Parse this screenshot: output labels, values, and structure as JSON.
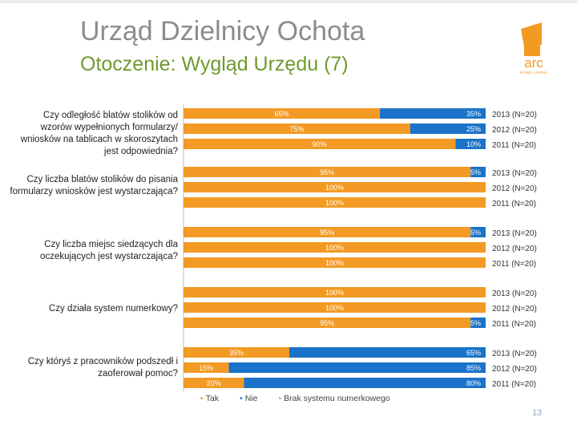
{
  "header": {
    "title": "Urząd Dzielnicy Ochota",
    "subtitle": "Otoczenie: Wygląd Urzędu (7)"
  },
  "logo": {
    "text": "arc",
    "tagline": "RYNEK I OPINIA"
  },
  "colors": {
    "tak": "#f39a25",
    "nie": "#1a73c9",
    "brak": "#c8c8c8"
  },
  "chart_data": {
    "type": "bar",
    "orientation": "horizontal-stacked-100",
    "groups": [
      {
        "question": "Czy odległość blatów stolików od wzorów wypełnionych formularzy/ wniosków na tablicach w skoroszytach jest odpowiednia?",
        "rows": [
          {
            "year": "2013 (N=20)",
            "values": [
              65,
              35,
              0
            ],
            "labels": [
              "65%",
              "35%",
              ""
            ]
          },
          {
            "year": "2012 (N=20)",
            "values": [
              75,
              25,
              0
            ],
            "labels": [
              "75%",
              "25%",
              ""
            ]
          },
          {
            "year": "2011 (N=20)",
            "values": [
              90,
              10,
              0
            ],
            "labels": [
              "90%",
              "10%",
              ""
            ]
          }
        ]
      },
      {
        "question": "Czy liczba blatów stolików do pisania formularzy wniosków jest wystarczająca?",
        "rows": [
          {
            "year": "2013 (N=20)",
            "values": [
              95,
              5,
              0
            ],
            "labels": [
              "95%",
              "5%",
              ""
            ]
          },
          {
            "year": "2012 (N=20)",
            "values": [
              100,
              0,
              0
            ],
            "labels": [
              "100%",
              "",
              ""
            ]
          },
          {
            "year": "2011 (N=20)",
            "values": [
              100,
              0,
              0
            ],
            "labels": [
              "100%",
              "",
              ""
            ]
          }
        ]
      },
      {
        "question": "Czy liczba miejsc siedzących dla oczekujących jest wystarczająca?",
        "rows": [
          {
            "year": "2013 (N=20)",
            "values": [
              95,
              5,
              0
            ],
            "labels": [
              "95%",
              "5%",
              ""
            ]
          },
          {
            "year": "2012 (N=20)",
            "values": [
              100,
              0,
              0
            ],
            "labels": [
              "100%",
              "",
              ""
            ]
          },
          {
            "year": "2011 (N=20)",
            "values": [
              100,
              0,
              0
            ],
            "labels": [
              "100%",
              "",
              ""
            ]
          }
        ]
      },
      {
        "question": "Czy działa system numerkowy?",
        "rows": [
          {
            "year": "2013 (N=20)",
            "values": [
              100,
              0,
              0
            ],
            "labels": [
              "100%",
              "",
              ""
            ]
          },
          {
            "year": "2012 (N=20)",
            "values": [
              100,
              0,
              0
            ],
            "labels": [
              "100%",
              "",
              ""
            ]
          },
          {
            "year": "2011 (N=20)",
            "values": [
              95,
              5,
              0
            ],
            "labels": [
              "95%",
              "5%",
              ""
            ]
          }
        ]
      },
      {
        "question": "Czy któryś z pracowników podszedł i zaoferował pomoc?",
        "rows": [
          {
            "year": "2013 (N=20)",
            "values": [
              35,
              65,
              0
            ],
            "labels": [
              "35%",
              "65%",
              ""
            ]
          },
          {
            "year": "2012 (N=20)",
            "values": [
              15,
              85,
              0
            ],
            "labels": [
              "15%",
              "85%",
              ""
            ]
          },
          {
            "year": "2011 (N=20)",
            "values": [
              20,
              80,
              0
            ],
            "labels": [
              "20%",
              "80%",
              ""
            ]
          }
        ]
      }
    ],
    "series": [
      {
        "name": "Tak"
      },
      {
        "name": "Nie"
      },
      {
        "name": "Brak systemu numerkowego"
      }
    ],
    "xlim": [
      0,
      100
    ]
  },
  "page_number": "13"
}
